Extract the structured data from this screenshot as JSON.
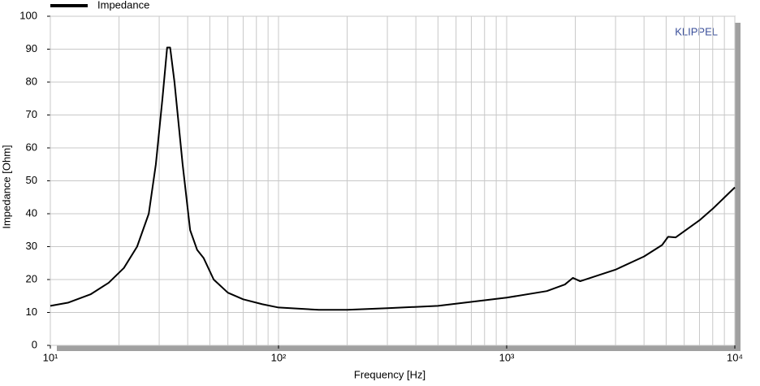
{
  "chart_data": {
    "type": "line",
    "xlabel": "Frequency  [Hz]",
    "ylabel": "Impedance  [Ohm]",
    "annotation": "KLIPPEL",
    "xscale": "log",
    "grid": true,
    "legend": "top-left",
    "xlim": [
      10,
      10000
    ],
    "ylim": [
      0,
      100
    ],
    "xticks": [
      {
        "value": 10,
        "label": "10¹"
      },
      {
        "value": 100,
        "label": "10²"
      },
      {
        "value": 1000,
        "label": "10³"
      },
      {
        "value": 10000,
        "label": "10⁴"
      }
    ],
    "yticks": [
      0,
      10,
      20,
      30,
      40,
      50,
      60,
      70,
      80,
      90,
      100
    ],
    "x": [
      10,
      12,
      15,
      18,
      21,
      24,
      27,
      29,
      31,
      32.5,
      33.5,
      35,
      38,
      41,
      44,
      47,
      52,
      60,
      70,
      85,
      100,
      150,
      200,
      300,
      500,
      1000,
      1500,
      1800,
      1950,
      2100,
      3000,
      4000,
      4800,
      5100,
      5500,
      7000,
      8000,
      10000
    ],
    "series": [
      {
        "name": "Impedance",
        "color": "#000000",
        "values": [
          12,
          13,
          15.5,
          19,
          23.5,
          30,
          40,
          55,
          75,
          90.5,
          90.5,
          80,
          55,
          35,
          29,
          26.5,
          20,
          16,
          14,
          12.5,
          11.5,
          10.8,
          10.8,
          11.3,
          12,
          14.5,
          16.5,
          18.5,
          20.5,
          19.5,
          23,
          27,
          30.5,
          33,
          32.8,
          38,
          41.5,
          48
        ]
      }
    ]
  }
}
